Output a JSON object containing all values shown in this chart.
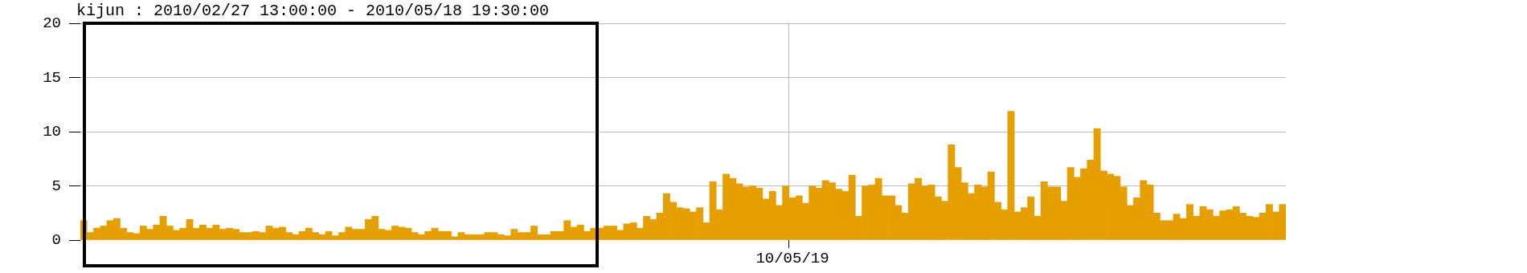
{
  "chart_data": {
    "type": "bar",
    "title": "kijun : 2010/02/27 13:00:00 - 2010/05/18 19:30:00",
    "categories": [
      null,
      null,
      null,
      null,
      null,
      null,
      null,
      null,
      null,
      null,
      null,
      null,
      null,
      null,
      null,
      null,
      null,
      null,
      null,
      null,
      null,
      null,
      null,
      null,
      null,
      null,
      null,
      null,
      null,
      null,
      null,
      null,
      null,
      null,
      null,
      null,
      null,
      null,
      null,
      null,
      null,
      null,
      null,
      null,
      null,
      null,
      null,
      null,
      null,
      null,
      null,
      null,
      null,
      null,
      null,
      null,
      null,
      null,
      null,
      null,
      null,
      null,
      null,
      null,
      null,
      null,
      null,
      null,
      null,
      null,
      null,
      null,
      null,
      null,
      null,
      null,
      null,
      null,
      null,
      null,
      null,
      null,
      null,
      null,
      null,
      null,
      null,
      null,
      null,
      null,
      null,
      null,
      null,
      null,
      null,
      null,
      null,
      null,
      null,
      null,
      null,
      null,
      null,
      null,
      null,
      null,
      null,
      "10/05/19",
      null,
      null,
      null,
      null,
      null,
      null,
      null,
      null,
      null,
      null,
      null,
      null,
      null,
      null,
      null,
      null,
      null,
      null,
      null,
      null,
      null,
      null,
      null,
      null,
      null,
      null,
      null,
      null,
      null,
      null,
      null,
      null,
      null,
      null,
      null,
      null,
      null,
      null,
      null,
      null,
      null,
      null,
      null,
      null,
      null,
      null,
      null,
      null,
      null,
      null,
      null,
      null,
      null,
      null,
      null,
      null,
      null,
      null,
      null,
      null,
      null,
      null,
      null,
      null,
      null,
      null,
      null,
      null,
      null,
      null,
      null,
      null,
      null,
      null
    ],
    "values": [
      1.8,
      0.7,
      1.1,
      1.3,
      1.8,
      2.0,
      1.1,
      0.7,
      0.6,
      1.3,
      1.0,
      1.4,
      2.2,
      1.3,
      0.9,
      1.1,
      1.9,
      1.1,
      1.4,
      1.1,
      1.4,
      1.0,
      1.1,
      1.0,
      0.7,
      0.7,
      0.8,
      0.7,
      1.3,
      1.1,
      1.2,
      0.7,
      0.5,
      0.8,
      1.1,
      0.7,
      0.5,
      0.8,
      0.4,
      0.7,
      1.2,
      1.0,
      1.0,
      1.9,
      2.2,
      1.0,
      0.9,
      1.3,
      1.2,
      1.1,
      0.7,
      0.5,
      0.8,
      1.1,
      0.8,
      0.8,
      0.3,
      0.7,
      0.5,
      0.5,
      0.5,
      0.7,
      0.7,
      0.5,
      0.4,
      1.0,
      0.7,
      0.7,
      1.3,
      0.5,
      0.5,
      0.8,
      0.8,
      1.8,
      1.2,
      1.4,
      0.8,
      1.1,
      1.1,
      1.3,
      1.3,
      0.9,
      1.5,
      1.6,
      1.1,
      2.2,
      1.9,
      2.5,
      4.3,
      3.5,
      3.0,
      2.9,
      2.6,
      3.0,
      1.6,
      5.4,
      2.8,
      6.1,
      5.7,
      5.2,
      4.9,
      5.0,
      4.8,
      3.8,
      4.5,
      3.2,
      5.0,
      3.9,
      4.1,
      3.4,
      5.0,
      4.8,
      5.5,
      5.3,
      4.7,
      4.5,
      6.0,
      2.2,
      5.0,
      5.1,
      5.7,
      4.1,
      4.1,
      3.2,
      2.5,
      5.2,
      5.7,
      5.0,
      5.1,
      4.0,
      3.6,
      8.8,
      6.7,
      5.3,
      4.3,
      5.1,
      4.9,
      6.3,
      3.5,
      2.8,
      11.9,
      2.6,
      3.0,
      4.0,
      2.2,
      5.4,
      4.9,
      4.9,
      3.6,
      6.7,
      5.8,
      6.6,
      7.4,
      10.3,
      6.4,
      6.1,
      5.9,
      4.9,
      3.2,
      3.9,
      5.5,
      5.1,
      2.5,
      1.8,
      1.8,
      2.4,
      2.0,
      3.3,
      2.2,
      3.1,
      2.8,
      2.2,
      2.7,
      2.8,
      3.1,
      2.5,
      2.2,
      2.1,
      2.5,
      3.3,
      2.6,
      3.3
    ],
    "color": "#e69f00",
    "ylim": [
      0,
      20
    ],
    "yticks": [
      0,
      5,
      10,
      15,
      20
    ],
    "grid": true
  }
}
